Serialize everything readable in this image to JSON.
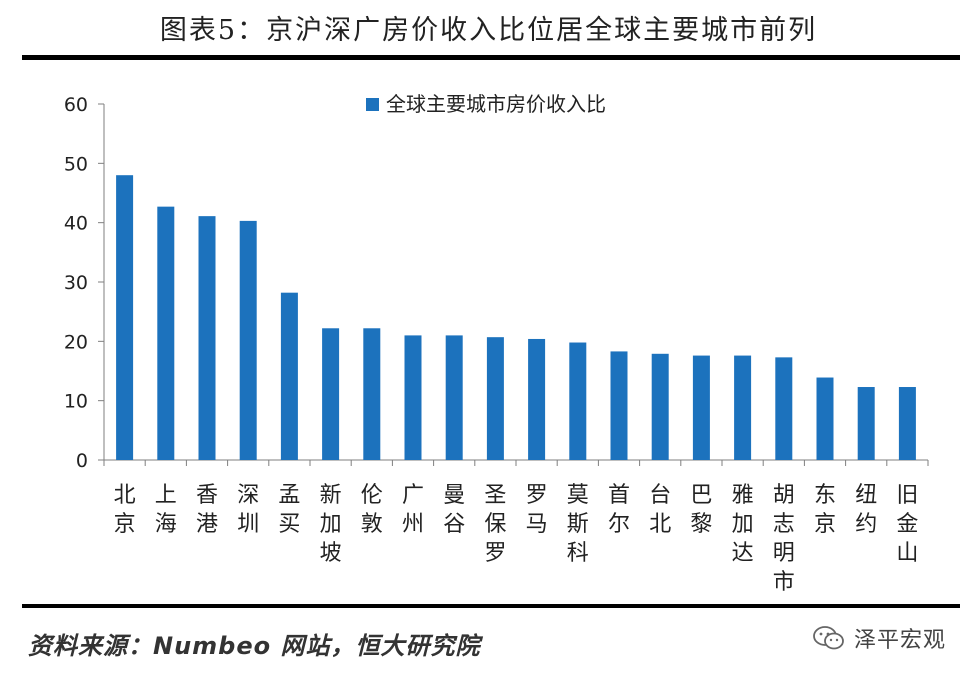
{
  "title": "图表5：京沪深广房价收入比位居全球主要城市前列",
  "source": "资料来源：Numbeo 网站，恒大研究院",
  "watermark": "泽平宏观",
  "chart_data": {
    "type": "bar",
    "categories": [
      "北京",
      "上海",
      "香港",
      "深圳",
      "孟买",
      "新加坡",
      "伦敦",
      "广州",
      "曼谷",
      "圣保罗",
      "罗马",
      "莫斯科",
      "首尔",
      "台北",
      "巴黎",
      "雅加达",
      "胡志明市",
      "东京",
      "纽约",
      "旧金山"
    ],
    "series": [
      {
        "name": "全球主要城市房价收入比",
        "values": [
          48.0,
          42.7,
          41.1,
          40.3,
          28.2,
          22.2,
          22.2,
          21.0,
          21.0,
          20.7,
          20.4,
          19.8,
          18.3,
          17.9,
          17.6,
          17.6,
          17.3,
          13.9,
          12.3,
          12.3
        ]
      }
    ],
    "ylim": [
      0,
      60
    ],
    "yticks": [
      0,
      10,
      20,
      30,
      40,
      50,
      60
    ],
    "legend_position": "top-center",
    "grid": false,
    "bar_color": "#1c72bd"
  }
}
